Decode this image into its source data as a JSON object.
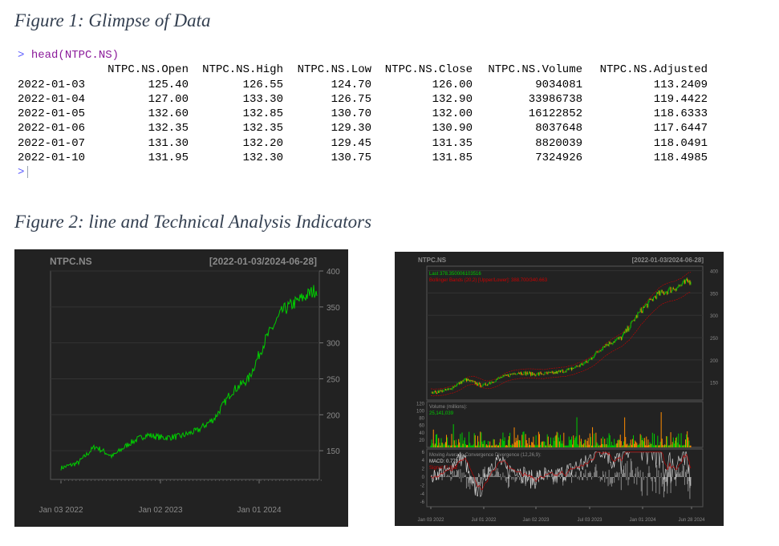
{
  "figure1": {
    "title": "Figure 1: Glimpse of Data",
    "console": {
      "prompt": ">",
      "command": "head(NTPC.NS)",
      "columns": [
        "NTPC.NS.Open",
        "NTPC.NS.High",
        "NTPC.NS.Low",
        "NTPC.NS.Close",
        "NTPC.NS.Volume",
        "NTPC.NS.Adjusted"
      ],
      "rows": [
        [
          "2022-01-03",
          "125.40",
          "126.55",
          "124.70",
          "126.00",
          "9034081",
          "113.2409"
        ],
        [
          "2022-01-04",
          "127.00",
          "133.30",
          "126.75",
          "132.90",
          "33986738",
          "119.4422"
        ],
        [
          "2022-01-05",
          "132.60",
          "132.85",
          "130.70",
          "132.00",
          "16122852",
          "118.6333"
        ],
        [
          "2022-01-06",
          "132.35",
          "132.35",
          "129.30",
          "130.90",
          "8037648",
          "117.6447"
        ],
        [
          "2022-01-07",
          "131.30",
          "132.20",
          "129.45",
          "131.35",
          "8820039",
          "118.0491"
        ],
        [
          "2022-01-10",
          "131.95",
          "132.30",
          "130.75",
          "131.85",
          "7324926",
          "118.4985"
        ]
      ]
    }
  },
  "figure2": {
    "title": "Figure 2: line and Technical Analysis Indicators"
  },
  "colors": {
    "chart_bg": "#222222",
    "line_green": "#00cc00",
    "bbands_red": "#cc0000",
    "candle_up": "#00cc00",
    "candle_down": "#ff8c00",
    "axis_text": "#8a8a8a"
  },
  "chart_data": [
    {
      "type": "line",
      "title": "NTPC.NS",
      "subtitle": "[2022-01-03/2024-06-28]",
      "x_tick_labels": [
        "Jan 03 2022",
        "Jan 02 2023",
        "Jan 01 2024"
      ],
      "y_tick_labels": [
        "150",
        "200",
        "250",
        "300",
        "350",
        "400"
      ],
      "ylim": [
        110,
        400
      ],
      "grid": true,
      "series": [
        {
          "x": [
            "2022-01",
            "2022-03",
            "2022-05",
            "2022-07",
            "2022-09",
            "2022-11",
            "2023-01",
            "2023-03",
            "2023-05",
            "2023-07",
            "2023-09",
            "2023-11",
            "2024-01",
            "2024-03",
            "2024-05",
            "2024-06"
          ],
          "values": [
            126,
            133,
            156,
            142,
            160,
            172,
            168,
            170,
            178,
            195,
            232,
            250,
            305,
            345,
            360,
            375
          ]
        }
      ]
    },
    {
      "type": "line",
      "title": "NTPC.NS",
      "subtitle": "[2022-01-03/2024-06-28]",
      "annotations": [
        "Last 378.350006103516",
        "Bollinger Bands (20,2) [Upper/Lower]: 388.700/340.663"
      ],
      "x_tick_labels": [
        "Jan 03 2022",
        "Jul 01 2022",
        "Jan 02 2023",
        "Jul 03 2023",
        "Jan 01 2024",
        "Jun 28 2024"
      ],
      "y_tick_labels": [
        "150",
        "200",
        "250",
        "300",
        "350",
        "400"
      ],
      "ylim": [
        110,
        410
      ],
      "series": [
        {
          "x": [
            "2022-01",
            "2022-03",
            "2022-05",
            "2022-07",
            "2022-09",
            "2022-11",
            "2023-01",
            "2023-03",
            "2023-05",
            "2023-07",
            "2023-09",
            "2023-11",
            "2024-01",
            "2024-03",
            "2024-05",
            "2024-06"
          ],
          "values": [
            126,
            133,
            156,
            142,
            160,
            172,
            168,
            170,
            178,
            195,
            232,
            250,
            305,
            345,
            360,
            378
          ]
        }
      ],
      "volume_panel": {
        "label": "Volume (millions):",
        "last_value": "25,141,039",
        "y_tick_labels": [
          "20",
          "40",
          "60",
          "80",
          "100",
          "120"
        ]
      },
      "macd_panel": {
        "label": "Moving Average Convergence Divergence (12,26,9):",
        "macd_text": "MACD: 0.773",
        "signal_text": "Signal: 0.852",
        "y_tick_labels": [
          "-6",
          "-4",
          "-2",
          "0",
          "2",
          "4",
          "6"
        ]
      }
    }
  ]
}
